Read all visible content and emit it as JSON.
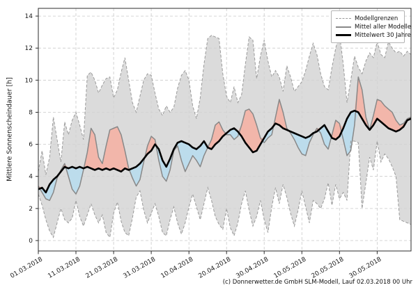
{
  "figure": {
    "ylabel": "Mittlere Sonnenscheindauer [h]",
    "caption": "(c) Donnerwetter.de GmbH SLM-Modell, Lauf 02.03.2018 00 Uhr"
  },
  "legend": {
    "items": [
      {
        "label": "Modellgrenzen",
        "style": "dashed",
        "color": "#999999"
      },
      {
        "label": "Mittel aller Modelle",
        "style": "solid",
        "color": "#888888"
      },
      {
        "label": "Mittelwert 30 Jahre",
        "style": "thick",
        "color": "#000000"
      }
    ]
  },
  "chart_data": {
    "type": "line",
    "title": "",
    "xlabel": "",
    "ylabel": "Mittlere Sonnenscheindauer [h]",
    "grid": true,
    "legend_position": "top-right",
    "ylim": [
      -0.65,
      14.48
    ],
    "y_ticks": [
      0,
      2,
      4,
      6,
      8,
      10,
      12,
      14
    ],
    "x_tick_days": [
      0,
      10,
      20,
      30,
      40,
      50,
      60,
      70,
      80,
      90
    ],
    "x_tick_labels": [
      "01.03.2018",
      "11.03.2018",
      "21.03.2018",
      "31.03.2018",
      "10.04.2018",
      "20.04.2018",
      "30.04.2018",
      "10.05.2018",
      "20.05.2018",
      "30.05.2018"
    ],
    "x_unit": "days since 01.03.2018, daily values",
    "colors": {
      "band_fill": "#d2d2d2",
      "band_edge": "#999999",
      "model_mean": "#888888",
      "climate_mean": "#000000",
      "fill_above": "#f2b6aa",
      "fill_below": "#bcdcec",
      "grid": "#c9c9c9",
      "spine": "#2b2b2b"
    },
    "series": [
      {
        "name": "Modellgrenzen (Maximum)",
        "values": [
          4.3,
          5.6,
          4.1,
          5.2,
          7.7,
          6.3,
          4.9,
          7.4,
          6.6,
          7.5,
          8.0,
          7.2,
          6.3,
          10.3,
          10.5,
          10.0,
          9.2,
          9.7,
          10.1,
          10.2,
          8.9,
          9.4,
          10.5,
          11.4,
          10.0,
          8.6,
          8.0,
          9.0,
          10.0,
          10.4,
          10.3,
          9.2,
          8.2,
          7.8,
          8.4,
          8.0,
          8.3,
          9.5,
          10.3,
          10.6,
          10.0,
          8.4,
          7.6,
          8.9,
          11.0,
          12.6,
          12.8,
          12.7,
          12.6,
          10.4,
          9.0,
          8.6,
          9.6,
          8.6,
          9.1,
          11.0,
          12.7,
          12.5,
          10.1,
          11.5,
          12.5,
          11.2,
          10.2,
          10.6,
          10.2,
          9.3,
          10.9,
          10.2,
          9.3,
          9.6,
          9.9,
          10.6,
          11.5,
          12.3,
          11.6,
          10.4,
          9.6,
          9.4,
          10.8,
          12.0,
          12.9,
          11.0,
          8.6,
          10.0,
          11.5,
          10.8,
          10.4,
          11.2,
          11.7,
          11.4,
          12.4,
          11.6,
          11.4,
          12.4,
          12.0,
          11.7,
          11.8,
          11.5,
          11.8,
          11.6
        ]
      },
      {
        "name": "Modellgrenzen (Minimum)",
        "values": [
          2.9,
          2.2,
          1.3,
          0.6,
          0.2,
          1.1,
          2.0,
          1.3,
          1.1,
          1.4,
          2.5,
          1.5,
          0.9,
          1.6,
          2.3,
          1.6,
          1.1,
          1.6,
          0.5,
          0.2,
          1.7,
          2.4,
          1.2,
          0.5,
          0.3,
          1.4,
          2.7,
          3.1,
          1.9,
          1.1,
          1.7,
          2.3,
          1.5,
          0.5,
          0.3,
          1.3,
          2.1,
          1.1,
          0.4,
          1.1,
          2.1,
          2.9,
          2.1,
          1.3,
          2.3,
          3.3,
          2.5,
          1.5,
          1.0,
          0.7,
          2.0,
          0.8,
          0.3,
          1.1,
          2.3,
          3.1,
          1.9,
          0.9,
          1.5,
          2.5,
          1.3,
          0.5,
          2.1,
          3.3,
          2.3,
          3.5,
          2.7,
          1.7,
          0.9,
          1.9,
          3.1,
          2.1,
          1.1,
          2.5,
          2.3,
          2.0,
          2.6,
          3.6,
          2.2,
          3.5,
          2.6,
          3.0,
          2.5,
          6.2,
          6.2,
          6.1,
          2.0,
          3.6,
          5.2,
          4.4,
          6.2,
          4.9,
          5.4,
          5.1,
          4.6,
          4.0,
          1.3,
          1.2,
          1.1,
          1.0
        ]
      },
      {
        "name": "Mittel aller Modelle",
        "values": [
          3.4,
          3.0,
          2.6,
          2.5,
          3.0,
          3.9,
          4.4,
          4.8,
          4.0,
          3.2,
          2.9,
          3.4,
          4.4,
          5.5,
          7.0,
          6.6,
          5.2,
          4.8,
          5.9,
          6.9,
          7.0,
          7.1,
          6.6,
          5.6,
          4.5,
          3.9,
          3.4,
          3.8,
          4.9,
          5.9,
          6.5,
          6.3,
          5.0,
          4.0,
          3.7,
          4.4,
          5.6,
          5.9,
          5.0,
          4.3,
          4.8,
          5.3,
          5.0,
          4.6,
          5.3,
          5.8,
          6.3,
          7.2,
          7.4,
          6.9,
          6.6,
          6.6,
          6.3,
          6.5,
          7.2,
          8.1,
          8.2,
          7.9,
          7.2,
          6.4,
          6.1,
          6.4,
          6.6,
          7.7,
          8.8,
          8.0,
          7.0,
          6.7,
          6.3,
          5.8,
          5.4,
          5.3,
          6.1,
          6.6,
          7.0,
          6.7,
          6.0,
          5.7,
          6.6,
          7.5,
          7.3,
          6.3,
          5.3,
          5.6,
          7.2,
          10.2,
          9.4,
          7.7,
          6.9,
          7.8,
          8.8,
          8.7,
          8.4,
          8.2,
          8.0,
          7.5,
          7.2,
          7.3,
          7.6,
          7.7
        ]
      },
      {
        "name": "Mittelwert 30 Jahre",
        "values": [
          3.2,
          3.3,
          3.0,
          3.5,
          3.8,
          4.0,
          4.3,
          4.6,
          4.5,
          4.6,
          4.5,
          4.6,
          4.5,
          4.6,
          4.5,
          4.4,
          4.5,
          4.4,
          4.5,
          4.4,
          4.5,
          4.4,
          4.3,
          4.5,
          4.4,
          4.5,
          4.6,
          4.8,
          5.1,
          5.4,
          5.6,
          6.0,
          5.7,
          5.0,
          4.6,
          5.1,
          5.7,
          6.1,
          6.2,
          6.1,
          6.0,
          5.8,
          5.7,
          5.9,
          6.2,
          5.8,
          5.7,
          6.0,
          6.2,
          6.5,
          6.7,
          6.9,
          7.0,
          6.8,
          6.5,
          6.1,
          5.8,
          5.5,
          5.6,
          6.0,
          6.4,
          6.8,
          7.0,
          7.3,
          7.2,
          7.0,
          6.9,
          6.8,
          6.7,
          6.6,
          6.5,
          6.4,
          6.5,
          6.7,
          6.8,
          7.0,
          7.2,
          6.8,
          6.4,
          6.3,
          6.5,
          7.0,
          7.6,
          8.0,
          8.1,
          8.0,
          7.6,
          7.2,
          6.9,
          7.2,
          7.6,
          7.4,
          7.2,
          7.0,
          6.9,
          6.8,
          6.9,
          7.1,
          7.5,
          7.6
        ]
      }
    ]
  }
}
